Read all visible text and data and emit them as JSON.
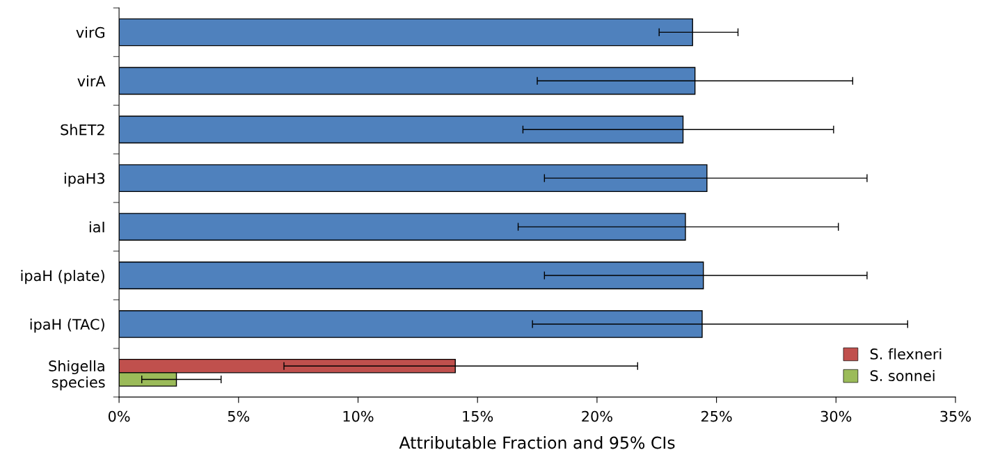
{
  "chart_data": {
    "type": "bar",
    "orientation": "horizontal",
    "xlabel": "Attributable Fraction and 95% CIs",
    "categories": [
      "virG",
      "virA",
      "ShET2",
      "ipaH3",
      "iaI",
      "ipaH (plate)",
      "ipaH (TAC)",
      "Shigella\nspecies"
    ],
    "series": [
      {
        "color": "#4f81bd",
        "values": [
          24.0,
          24.1,
          23.6,
          24.6,
          23.7,
          24.45,
          24.4,
          null
        ],
        "errors": [
          [
            22.6,
            25.9
          ],
          [
            17.5,
            30.7
          ],
          [
            16.9,
            29.9
          ],
          [
            17.8,
            31.3
          ],
          [
            16.7,
            30.1
          ],
          [
            17.8,
            31.3
          ],
          [
            17.3,
            33.0
          ],
          null
        ]
      },
      {
        "name": "S. flexneri",
        "color": "#c0504d",
        "values": [
          null,
          null,
          null,
          null,
          null,
          null,
          null,
          14.07
        ],
        "errors": [
          null,
          null,
          null,
          null,
          null,
          null,
          null,
          [
            6.9,
            21.7
          ]
        ]
      },
      {
        "name": "S. sonnei",
        "color": "#9bbb59",
        "values": [
          null,
          null,
          null,
          null,
          null,
          null,
          null,
          2.4
        ],
        "errors": [
          null,
          null,
          null,
          null,
          null,
          null,
          null,
          [
            0.95,
            4.27
          ]
        ]
      }
    ],
    "xlim": [
      0,
      35
    ],
    "xticks": [
      {
        "value": 0,
        "label": "0%"
      },
      {
        "value": 5,
        "label": "5%"
      },
      {
        "value": 10,
        "label": "10%"
      },
      {
        "value": 15,
        "label": "15%"
      },
      {
        "value": 20,
        "label": "20%"
      },
      {
        "value": 25,
        "label": "25%"
      },
      {
        "value": 30,
        "label": "30%"
      },
      {
        "value": 35,
        "label": "35%"
      }
    ],
    "grid": false,
    "legend": "bottom right"
  }
}
